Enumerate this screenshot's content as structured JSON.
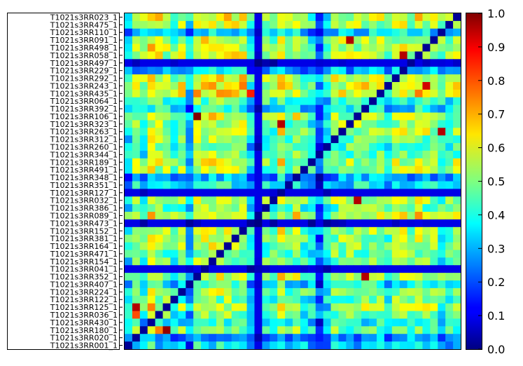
{
  "chart_data": {
    "type": "heatmap",
    "title": "",
    "xlabel": "",
    "ylabel": "",
    "row_labels": [
      "T1021s3RR023_1",
      "T1021s3RR475_1",
      "T1021s3RR110_1",
      "T1021s3RR091_1",
      "T1021s3RR498_1",
      "T1021s3RR058_1",
      "T1021s3RR497_1",
      "T1021s3RR229_1",
      "T1021s3RR292_1",
      "T1021s3RR243_1",
      "T1021s3RR435_1",
      "T1021s3RR064_1",
      "T1021s3RR392_1",
      "T1021s3RR106_1",
      "T1021s3RR323_1",
      "T1021s3RR263_1",
      "T1021s3RR312_1",
      "T1021s3RR260_1",
      "T1021s3RR344_1",
      "T1021s3RR189_1",
      "T1021s3RR491_1",
      "T1021s3RR348_1",
      "T1021s3RR351_1",
      "T1021s3RR127_1",
      "T1021s3RR032_1",
      "T1021s3RR386_1",
      "T1021s3RR089_1",
      "T1021s3RR473_1",
      "T1021s3RR152_1",
      "T1021s3RR381_1",
      "T1021s3RR164_1",
      "T1021s3RR471_1",
      "T1021s3RR154_1",
      "T1021s3RR041_1",
      "T1021s3RR352_1",
      "T1021s3RR407_1",
      "T1021s3RR224_1",
      "T1021s3RR122_1",
      "T1021s3RR125_1",
      "T1021s3RR036_1",
      "T1021s3RR430_1",
      "T1021s3RR180_1",
      "T1021s3RR020_1",
      "T1021s3RR001_1"
    ],
    "n_columns": 44,
    "colorbar": {
      "colormap": "jet",
      "range": [
        0.0,
        1.0
      ],
      "tick_labels": [
        "0.0",
        "0.1",
        "0.2",
        "0.3",
        "0.4",
        "0.5",
        "0.6",
        "0.7",
        "0.8",
        "0.9",
        "1.0"
      ]
    },
    "row_profiles": [
      0.45,
      0.4,
      0.15,
      0.4,
      0.4,
      0.42,
      0.03,
      0.12,
      0.45,
      0.48,
      0.48,
      0.25,
      0.18,
      0.4,
      0.36,
      0.38,
      0.3,
      0.28,
      0.3,
      0.4,
      0.38,
      0.12,
      0.18,
      0.05,
      0.38,
      0.3,
      0.45,
      0.03,
      0.38,
      0.35,
      0.35,
      0.32,
      0.3,
      0.05,
      0.4,
      0.2,
      0.35,
      0.3,
      0.38,
      0.3,
      0.2,
      0.3,
      0.1,
      0.15
    ],
    "column_profiles": [
      0.25,
      0.4,
      0.3,
      0.55,
      0.45,
      0.4,
      0.3,
      0.42,
      0.15,
      0.5,
      0.5,
      0.5,
      0.48,
      0.48,
      0.48,
      0.48,
      0.2,
      0.04,
      0.35,
      0.3,
      0.52,
      0.35,
      0.45,
      0.3,
      0.25,
      0.08,
      0.2,
      0.4,
      0.4,
      0.4,
      0.4,
      0.42,
      0.4,
      0.4,
      0.3,
      0.42,
      0.45,
      0.38,
      0.48,
      0.45,
      0.42,
      0.3,
      0.35,
      0.42
    ],
    "peaks": [
      {
        "row": 13,
        "col": 9,
        "value": 1.0
      },
      {
        "row": 14,
        "col": 20,
        "value": 0.95
      },
      {
        "row": 15,
        "col": 41,
        "value": 0.95
      },
      {
        "row": 24,
        "col": 30,
        "value": 0.95
      },
      {
        "row": 34,
        "col": 31,
        "value": 0.95
      },
      {
        "row": 38,
        "col": 1,
        "value": 0.95
      },
      {
        "row": 39,
        "col": 1,
        "value": 0.8
      },
      {
        "row": 41,
        "col": 5,
        "value": 0.98
      },
      {
        "row": 41,
        "col": 4,
        "value": 0.75
      },
      {
        "row": 38,
        "col": 3,
        "value": 0.75
      },
      {
        "row": 5,
        "col": 36,
        "value": 0.95
      },
      {
        "row": 3,
        "col": 29,
        "value": 0.95
      },
      {
        "row": 9,
        "col": 39,
        "value": 0.92
      },
      {
        "row": 10,
        "col": 16,
        "value": 0.85
      }
    ]
  }
}
